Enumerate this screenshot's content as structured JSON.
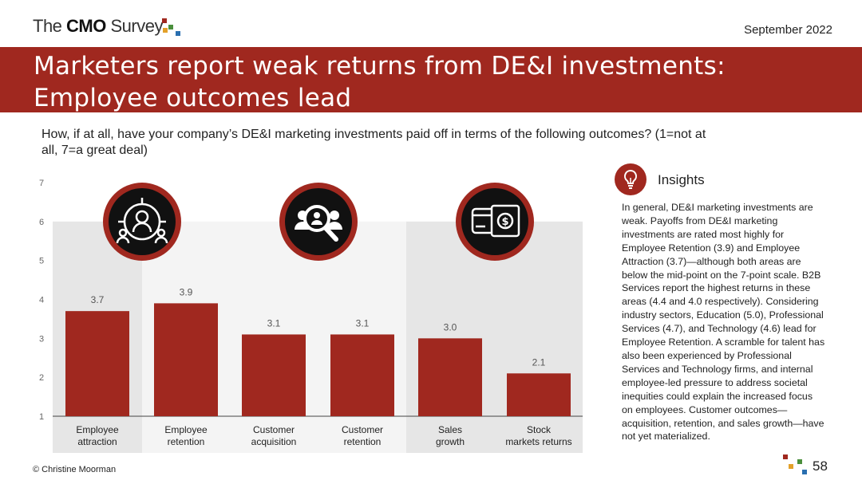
{
  "header": {
    "logo_text_pre": "The ",
    "logo_text_bold": "CMO",
    "logo_text_post": " Survey",
    "date": "September 2022",
    "title": "Marketers report weak returns from DE&I investments: Employee outcomes lead"
  },
  "question": "How, if at all, have your company’s DE&I marketing investments paid off in terms of the following outcomes? (1=not at all, 7=a great deal)",
  "insights": {
    "title": "Insights",
    "icon": "lightbulb-icon",
    "text": "In general, DE&I marketing investments are weak. Payoffs from DE&I marketing investments are rated most highly for Employee Retention (3.9) and Employee Attraction (3.7)—although both areas are below the mid-point on the 7-point scale. B2B Services report the highest returns in these areas (4.4 and 4.0 respectively). Considering industry sectors, Education (5.0), Professional Services (4.7), and Technology (4.6) lead for Employee Retention. A scramble for talent has also been experienced by Professional Services and Technology firms, and internal employee-led pressure to address societal inequities could explain the increased focus on employees. Customer outcomes—acquisition, retention, and sales growth—have not yet materialized."
  },
  "footer": {
    "copyright": "© Christine Moorman",
    "page_number": "58"
  },
  "colors": {
    "brand_red": "#a0281f",
    "bar": "#a0281f",
    "group_band": "#e6e6e6"
  },
  "chart_data": {
    "type": "bar",
    "categories": [
      "Employee attraction",
      "Employee retention",
      "Customer acquisition",
      "Customer retention",
      "Sales growth",
      "Stock markets returns"
    ],
    "category_lines": [
      [
        "Employee",
        "attraction"
      ],
      [
        "Employee",
        "retention"
      ],
      [
        "Customer",
        "acquisition"
      ],
      [
        "Customer",
        "retention"
      ],
      [
        "Sales",
        "growth"
      ],
      [
        "Stock",
        "markets returns"
      ]
    ],
    "values": [
      3.7,
      3.9,
      3.1,
      3.1,
      3.0,
      2.1
    ],
    "data_labels": [
      "3.7",
      "3.9",
      "3.1",
      "3.1",
      "3.0",
      "2.1"
    ],
    "ylim": [
      1,
      7
    ],
    "yticks": [
      1,
      2,
      3,
      4,
      5,
      6,
      7
    ],
    "xlabel": "",
    "ylabel": "",
    "grid": false,
    "groups": [
      {
        "icon": "people-target-icon",
        "categories": [
          0,
          1
        ]
      },
      {
        "icon": "people-search-icon",
        "categories": [
          2,
          3
        ]
      },
      {
        "icon": "money-card-icon",
        "categories": [
          4,
          5
        ]
      }
    ]
  }
}
